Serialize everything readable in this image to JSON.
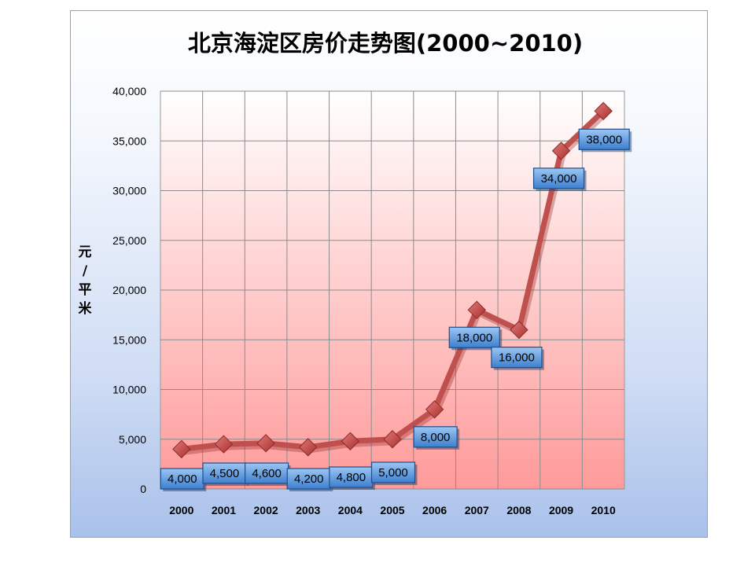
{
  "chart_data": {
    "type": "line",
    "title": "北京海淀区房价走势图(2000~2010)",
    "xlabel": "",
    "ylabel": "元/平米",
    "categories": [
      "2000",
      "2001",
      "2002",
      "2003",
      "2004",
      "2005",
      "2006",
      "2007",
      "2008",
      "2009",
      "2010"
    ],
    "series": [
      {
        "values": [
          4000,
          4500,
          4600,
          4200,
          4800,
          5000,
          8000,
          18000,
          16000,
          34000,
          38000
        ]
      }
    ],
    "data_labels": [
      "4,000",
      "4,500",
      "4,600",
      "4,200",
      "4,800",
      "5,000",
      "8,000",
      "18,000",
      "16,000",
      "34,000",
      "38,000"
    ],
    "y_ticks": [
      "0",
      "5,000",
      "10,000",
      "15,000",
      "20,000",
      "25,000",
      "30,000",
      "35,000",
      "40,000"
    ],
    "ylim": [
      0,
      40000
    ],
    "grid": true,
    "legend": "none",
    "colors": {
      "line": "#c0504d",
      "marker": "#c0504d",
      "plot_top": "#ffffff",
      "plot_bottom": "#ff9a9a",
      "label_fill": "#4f8fd6",
      "label_border": "#1f4e8c"
    }
  }
}
